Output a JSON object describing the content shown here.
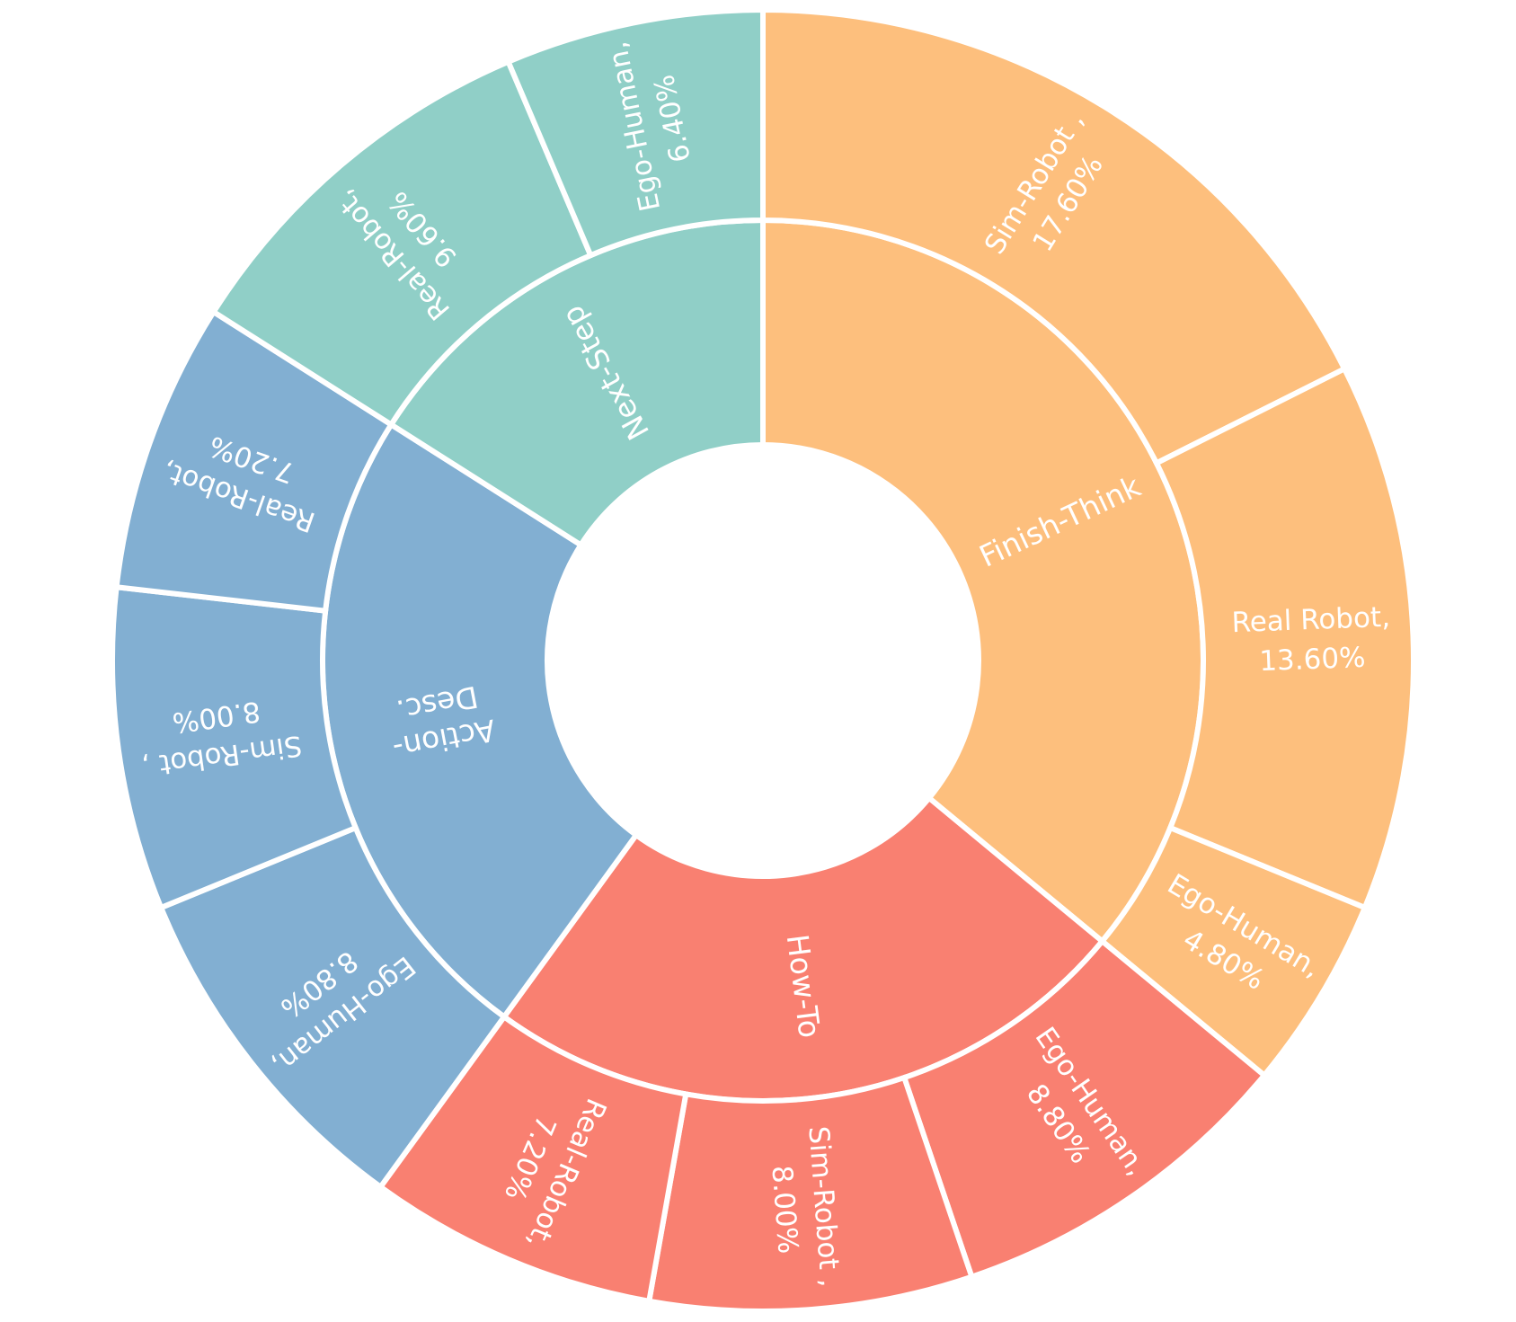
{
  "chart_data": {
    "type": "sunburst",
    "start_angle_deg": 90,
    "direction": "clockwise",
    "separator_color": "#ffffff",
    "categories": [
      {
        "name": "Finish-Think",
        "color": "#fdbf7d",
        "children": [
          {
            "name": "Sim-Robot",
            "value": 17.6,
            "label_lines": [
              "Sim-Robot ,",
              "17.60%"
            ]
          },
          {
            "name": "Real Robot",
            "value": 13.6,
            "label_lines": [
              "Real Robot,",
              "13.60%"
            ]
          },
          {
            "name": "Ego-Human",
            "value": 4.8,
            "label_lines": [
              "Ego-Human,",
              "4.80%"
            ]
          }
        ]
      },
      {
        "name": "How-To",
        "color": "#f98071",
        "children": [
          {
            "name": "Ego-Human",
            "value": 8.8,
            "label_lines": [
              "Ego-Human,",
              "8.80%"
            ]
          },
          {
            "name": "Sim-Robot",
            "value": 8.0,
            "label_lines": [
              "Sim-Robot ,",
              "8.00%"
            ]
          },
          {
            "name": "Real-Robot",
            "value": 7.2,
            "label_lines": [
              "Real-Robot,",
              "7.20%"
            ]
          }
        ]
      },
      {
        "name": "Action-Desc.",
        "color": "#82afd2",
        "label_lines": [
          "Action-",
          "Desc."
        ],
        "children": [
          {
            "name": "Ego-Human",
            "value": 8.8,
            "label_lines": [
              "Ego-Human,",
              "8.80%"
            ]
          },
          {
            "name": "Sim-Robot",
            "value": 8.0,
            "label_lines": [
              "Sim-Robot ,",
              "8.00%"
            ]
          },
          {
            "name": "Real-Robot",
            "value": 7.2,
            "label_lines": [
              "Real-Robot,",
              "7.20%"
            ]
          }
        ]
      },
      {
        "name": "Next-Step",
        "color": "#90cfc7",
        "children": [
          {
            "name": "Real-Robot",
            "value": 9.6,
            "label_lines": [
              "Real-Robot,",
              "9.60%"
            ]
          },
          {
            "name": "Ego-Human",
            "value": 6.4,
            "label_lines": [
              "Ego-Human,",
              "6.40%"
            ]
          }
        ]
      }
    ]
  }
}
